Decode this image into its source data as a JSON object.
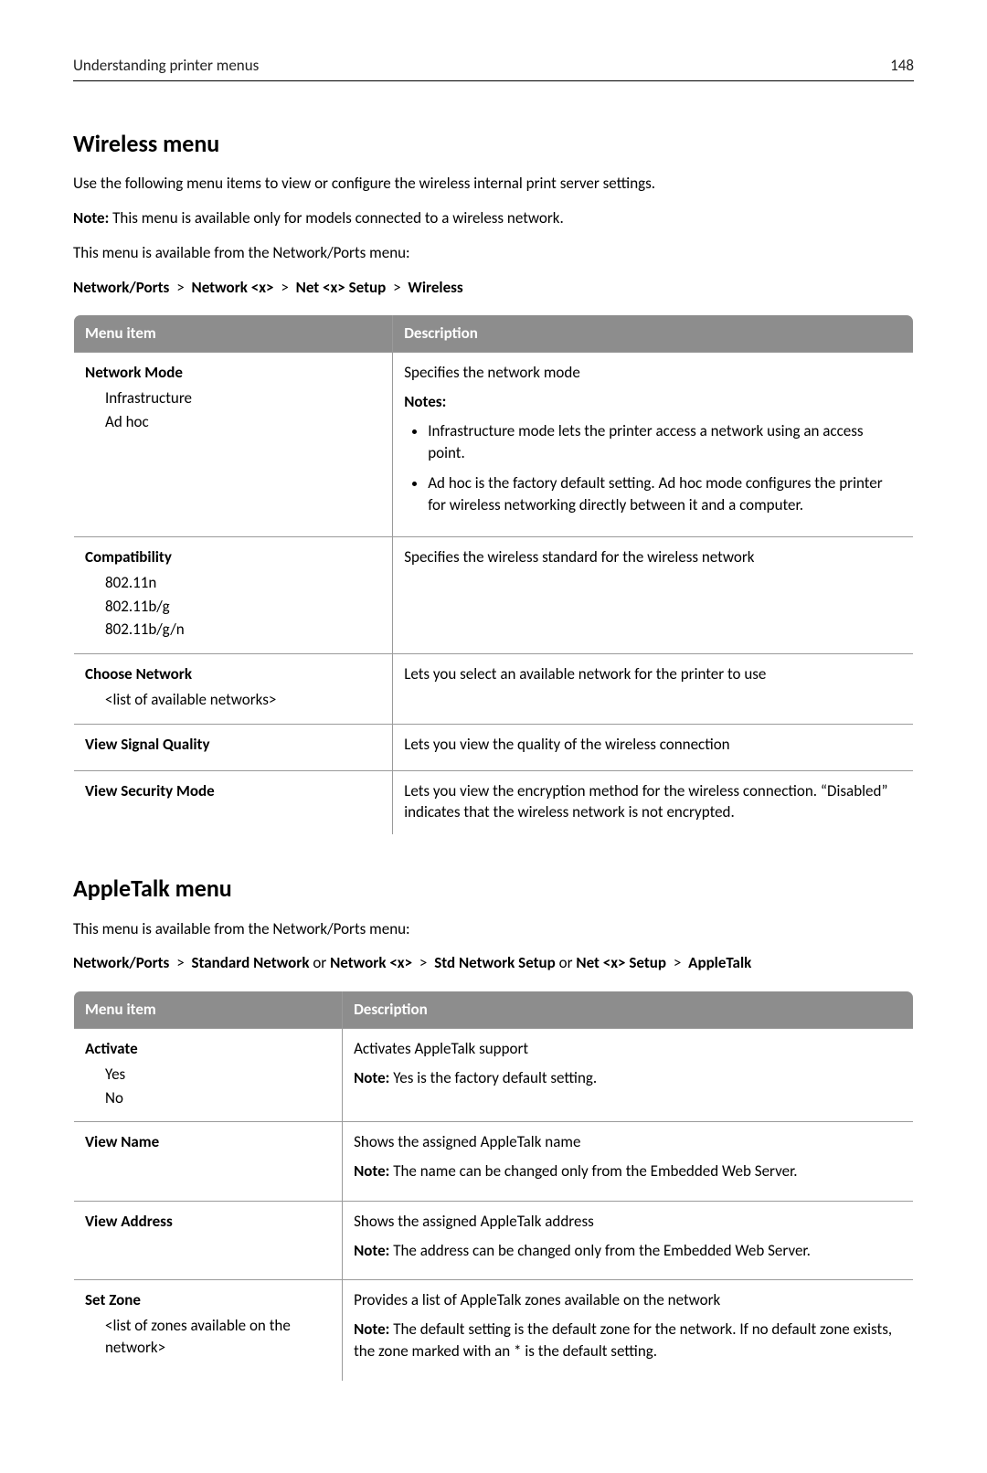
{
  "header": {
    "title": "Understanding printer menus",
    "page_number": "148"
  },
  "section1": {
    "heading": "Wireless menu",
    "intro": "Use the following menu items to view or configure the wireless internal print server settings.",
    "note_label": "Note:",
    "note_text": " This menu is available only for models connected to a wireless network.",
    "avail": "This menu is available from the Network/Ports menu:",
    "breadcrumb": {
      "p0": "Network/Ports",
      "p1": "Network <x>",
      "p2": "Net <x> Setup",
      "p3": "Wireless",
      "sep": ">"
    },
    "table": {
      "col_widths": {
        "item": "38%",
        "desc": "62%"
      },
      "head": {
        "c0": "Menu item",
        "c1": "Description"
      },
      "rows": [
        {
          "item_title": "Network Mode",
          "subs": [
            "Infrastructure",
            "Ad hoc"
          ],
          "desc_lead": "Specifies the network mode",
          "notes_label": "Notes:",
          "bullets": [
            "Infrastructure mode lets the printer access a network using an access point.",
            "Ad hoc is the factory default setting. Ad hoc mode configures the printer for wireless networking directly between it and a computer."
          ]
        },
        {
          "item_title": "Compatibility",
          "subs": [
            "802.11n",
            "802.11b/g",
            "802.11b/g/n"
          ],
          "desc_lead": "Specifies the wireless standard for the wireless network"
        },
        {
          "item_title": "Choose Network",
          "subs": [
            "<list of available networks>"
          ],
          "desc_lead": "Lets you select an available network for the printer to use"
        },
        {
          "item_title": "View Signal Quality",
          "desc_lead": "Lets you view the quality of the wireless connection"
        },
        {
          "item_title": "View Security Mode",
          "desc_lead": "Lets you view the encryption method for the wireless connection. “Disabled” indicates that the wireless network is not encrypted."
        }
      ]
    }
  },
  "section2": {
    "heading": "AppleTalk menu",
    "avail": "This menu is available from the Network/Ports menu:",
    "breadcrumb": {
      "p0": "Network/Ports",
      "p1": "Standard Network",
      "or": " or ",
      "p2": "Network <x>",
      "p3": "Std Network Setup",
      "p4": "Net <x> Setup",
      "p5": "AppleTalk",
      "sep": ">"
    },
    "table": {
      "col_widths": {
        "item": "32%",
        "desc": "68%"
      },
      "head": {
        "c0": "Menu item",
        "c1": "Description"
      },
      "rows": [
        {
          "item_title": "Activate",
          "subs": [
            "Yes",
            "No"
          ],
          "desc_lead": "Activates AppleTalk support",
          "note_label": "Note:",
          "note_text": " Yes is the factory default setting."
        },
        {
          "item_title": "View Name",
          "desc_lead": "Shows the assigned AppleTalk name",
          "note_label": "Note:",
          "note_text": " The name can be changed only from the Embedded Web Server."
        },
        {
          "item_title": "View Address",
          "desc_lead": "Shows the assigned AppleTalk address",
          "note_label": "Note:",
          "note_text": " The address can be changed only from the Embedded Web Server."
        },
        {
          "item_title": "Set Zone",
          "subs": [
            "<list of zones available on the network>"
          ],
          "desc_lead": "Provides a list of AppleTalk zones available on the network",
          "note_label": "Note:",
          "note_text": " The default setting is the default zone for the network. If no default zone exists, the zone marked with an * is the default setting."
        }
      ]
    }
  }
}
